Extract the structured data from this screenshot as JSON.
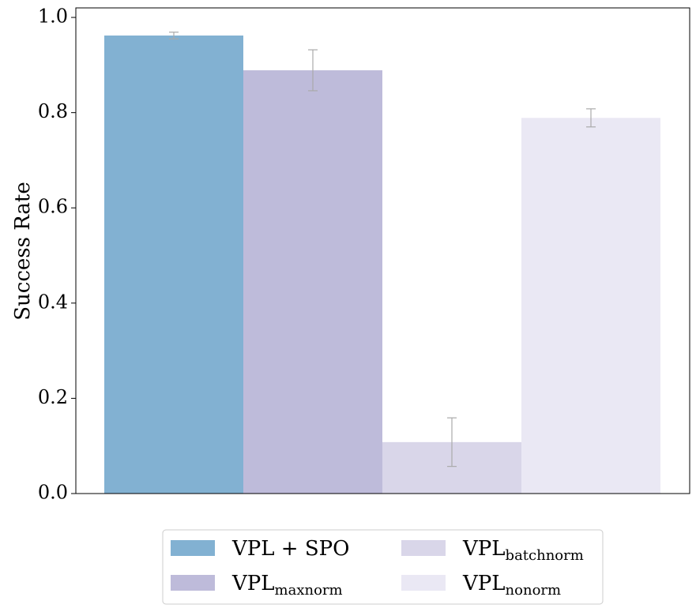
{
  "chart_data": {
    "type": "bar",
    "title": "",
    "xlabel": "",
    "ylabel": "Success Rate",
    "ylim": [
      0,
      1.02
    ],
    "yticks": [
      0.0,
      0.2,
      0.4,
      0.6,
      0.8,
      1.0
    ],
    "ytick_labels": [
      "0.0",
      "0.2",
      "0.4",
      "0.6",
      "0.8",
      "1.0"
    ],
    "grid": false,
    "legend_position": "bottom-center",
    "series": [
      {
        "name": "VPL + SPO",
        "label_main": "VPL + SPO",
        "label_sub": "",
        "value": 0.962,
        "error": 0.007,
        "color": "#82b1d2"
      },
      {
        "name": "VPL_maxnorm",
        "label_main": "VPL",
        "label_sub": "maxnorm",
        "value": 0.889,
        "error": 0.043,
        "color": "#bebbda"
      },
      {
        "name": "VPL_batchnorm",
        "label_main": "VPL",
        "label_sub": "batchnorm",
        "value": 0.108,
        "error": 0.051,
        "color": "#d9d6e9"
      },
      {
        "name": "VPL_nonorm",
        "label_main": "VPL",
        "label_sub": "nonorm",
        "value": 0.789,
        "error": 0.019,
        "color": "#eae8f4"
      }
    ]
  }
}
